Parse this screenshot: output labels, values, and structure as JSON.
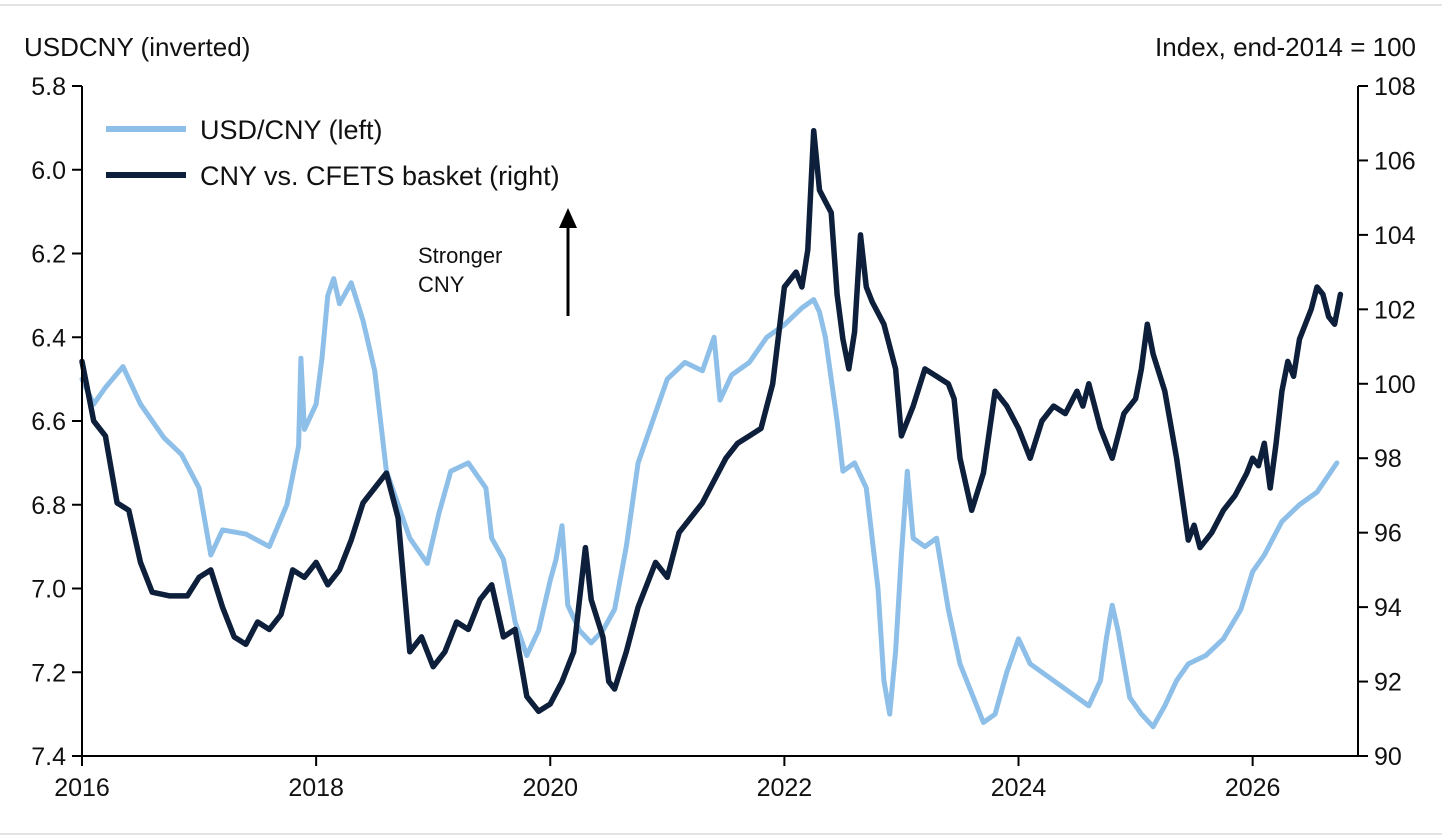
{
  "left_axis_title": "USDCNY (inverted)",
  "right_axis_title": "Index, end-2014 = 100",
  "annotation": {
    "line1": "Stronger",
    "line2": "CNY"
  },
  "chart_data": {
    "type": "line",
    "title": "",
    "x": {
      "min": 2016.0,
      "max": 2026.9,
      "ticks": [
        "2016",
        "2018",
        "2020",
        "2022",
        "2024",
        "2026"
      ]
    },
    "y_left": {
      "label": "USDCNY (inverted)",
      "min": 5.8,
      "max": 7.4,
      "inverted": true,
      "ticks": [
        "5.8",
        "6.0",
        "6.2",
        "6.4",
        "6.6",
        "6.8",
        "7.0",
        "7.2",
        "7.4"
      ]
    },
    "y_right": {
      "label": "Index, end-2014 = 100",
      "min": 90,
      "max": 108,
      "ticks": [
        "108",
        "106",
        "104",
        "102",
        "100",
        "98",
        "96",
        "94",
        "92",
        "90"
      ]
    },
    "legend_position": "top-left",
    "grid": false,
    "series": [
      {
        "name": "USD/CNY (left)",
        "axis": "left",
        "color": "#8dbfe8",
        "points": [
          [
            2016.0,
            6.5
          ],
          [
            2016.1,
            6.56
          ],
          [
            2016.2,
            6.52
          ],
          [
            2016.35,
            6.47
          ],
          [
            2016.5,
            6.56
          ],
          [
            2016.7,
            6.64
          ],
          [
            2016.85,
            6.68
          ],
          [
            2017.0,
            6.76
          ],
          [
            2017.1,
            6.92
          ],
          [
            2017.2,
            6.86
          ],
          [
            2017.4,
            6.87
          ],
          [
            2017.6,
            6.9
          ],
          [
            2017.75,
            6.8
          ],
          [
            2017.85,
            6.66
          ],
          [
            2017.87,
            6.45
          ],
          [
            2017.9,
            6.62
          ],
          [
            2018.0,
            6.56
          ],
          [
            2018.05,
            6.45
          ],
          [
            2018.1,
            6.3
          ],
          [
            2018.15,
            6.26
          ],
          [
            2018.2,
            6.32
          ],
          [
            2018.3,
            6.27
          ],
          [
            2018.4,
            6.36
          ],
          [
            2018.5,
            6.48
          ],
          [
            2018.6,
            6.72
          ],
          [
            2018.7,
            6.8
          ],
          [
            2018.8,
            6.88
          ],
          [
            2018.95,
            6.94
          ],
          [
            2019.05,
            6.82
          ],
          [
            2019.15,
            6.72
          ],
          [
            2019.3,
            6.7
          ],
          [
            2019.45,
            6.76
          ],
          [
            2019.5,
            6.88
          ],
          [
            2019.6,
            6.93
          ],
          [
            2019.7,
            7.08
          ],
          [
            2019.8,
            7.16
          ],
          [
            2019.9,
            7.1
          ],
          [
            2020.0,
            6.98
          ],
          [
            2020.05,
            6.93
          ],
          [
            2020.1,
            6.85
          ],
          [
            2020.15,
            7.04
          ],
          [
            2020.25,
            7.1
          ],
          [
            2020.35,
            7.13
          ],
          [
            2020.45,
            7.1
          ],
          [
            2020.55,
            7.05
          ],
          [
            2020.65,
            6.9
          ],
          [
            2020.75,
            6.7
          ],
          [
            2020.9,
            6.58
          ],
          [
            2021.0,
            6.5
          ],
          [
            2021.15,
            6.46
          ],
          [
            2021.3,
            6.48
          ],
          [
            2021.4,
            6.4
          ],
          [
            2021.45,
            6.55
          ],
          [
            2021.55,
            6.49
          ],
          [
            2021.7,
            6.46
          ],
          [
            2021.85,
            6.4
          ],
          [
            2022.0,
            6.37
          ],
          [
            2022.15,
            6.33
          ],
          [
            2022.25,
            6.31
          ],
          [
            2022.3,
            6.34
          ],
          [
            2022.35,
            6.4
          ],
          [
            2022.45,
            6.6
          ],
          [
            2022.5,
            6.72
          ],
          [
            2022.6,
            6.7
          ],
          [
            2022.7,
            6.76
          ],
          [
            2022.8,
            7.0
          ],
          [
            2022.85,
            7.22
          ],
          [
            2022.9,
            7.3
          ],
          [
            2022.95,
            7.15
          ],
          [
            2023.0,
            6.92
          ],
          [
            2023.05,
            6.72
          ],
          [
            2023.1,
            6.88
          ],
          [
            2023.2,
            6.9
          ],
          [
            2023.3,
            6.88
          ],
          [
            2023.4,
            7.05
          ],
          [
            2023.5,
            7.18
          ],
          [
            2023.6,
            7.25
          ],
          [
            2023.7,
            7.32
          ],
          [
            2023.8,
            7.3
          ],
          [
            2023.9,
            7.2
          ],
          [
            2024.0,
            7.12
          ],
          [
            2024.1,
            7.18
          ],
          [
            2024.3,
            7.22
          ],
          [
            2024.5,
            7.26
          ],
          [
            2024.6,
            7.28
          ],
          [
            2024.7,
            7.22
          ],
          [
            2024.75,
            7.12
          ],
          [
            2024.8,
            7.04
          ],
          [
            2024.85,
            7.1
          ],
          [
            2024.95,
            7.26
          ],
          [
            2025.05,
            7.3
          ],
          [
            2025.15,
            7.33
          ],
          [
            2025.25,
            7.28
          ],
          [
            2025.35,
            7.22
          ],
          [
            2025.45,
            7.18
          ],
          [
            2025.6,
            7.16
          ],
          [
            2025.75,
            7.12
          ],
          [
            2025.9,
            7.05
          ],
          [
            2026.0,
            6.96
          ],
          [
            2026.1,
            6.92
          ],
          [
            2026.25,
            6.84
          ],
          [
            2026.4,
            6.8
          ],
          [
            2026.55,
            6.77
          ],
          [
            2026.72,
            6.7
          ]
        ]
      },
      {
        "name": "CNY vs. CFETS basket (right)",
        "axis": "right",
        "color": "#0d1f3a",
        "points": [
          [
            2016.0,
            100.6
          ],
          [
            2016.1,
            99.0
          ],
          [
            2016.2,
            98.6
          ],
          [
            2016.3,
            96.8
          ],
          [
            2016.4,
            96.6
          ],
          [
            2016.5,
            95.2
          ],
          [
            2016.6,
            94.4
          ],
          [
            2016.75,
            94.3
          ],
          [
            2016.9,
            94.3
          ],
          [
            2017.0,
            94.8
          ],
          [
            2017.1,
            95.0
          ],
          [
            2017.2,
            94.0
          ],
          [
            2017.3,
            93.2
          ],
          [
            2017.4,
            93.0
          ],
          [
            2017.5,
            93.6
          ],
          [
            2017.6,
            93.4
          ],
          [
            2017.7,
            93.8
          ],
          [
            2017.8,
            95.0
          ],
          [
            2017.9,
            94.8
          ],
          [
            2018.0,
            95.2
          ],
          [
            2018.1,
            94.6
          ],
          [
            2018.2,
            95.0
          ],
          [
            2018.3,
            95.8
          ],
          [
            2018.4,
            96.8
          ],
          [
            2018.5,
            97.2
          ],
          [
            2018.6,
            97.6
          ],
          [
            2018.7,
            96.4
          ],
          [
            2018.8,
            92.8
          ],
          [
            2018.9,
            93.2
          ],
          [
            2019.0,
            92.4
          ],
          [
            2019.1,
            92.8
          ],
          [
            2019.2,
            93.6
          ],
          [
            2019.3,
            93.4
          ],
          [
            2019.4,
            94.2
          ],
          [
            2019.5,
            94.6
          ],
          [
            2019.6,
            93.2
          ],
          [
            2019.7,
            93.4
          ],
          [
            2019.8,
            91.6
          ],
          [
            2019.9,
            91.2
          ],
          [
            2020.0,
            91.4
          ],
          [
            2020.1,
            92.0
          ],
          [
            2020.2,
            92.8
          ],
          [
            2020.25,
            94.2
          ],
          [
            2020.3,
            95.6
          ],
          [
            2020.35,
            94.2
          ],
          [
            2020.45,
            93.2
          ],
          [
            2020.5,
            92.0
          ],
          [
            2020.55,
            91.8
          ],
          [
            2020.65,
            92.8
          ],
          [
            2020.75,
            94.0
          ],
          [
            2020.9,
            95.2
          ],
          [
            2021.0,
            94.8
          ],
          [
            2021.1,
            96.0
          ],
          [
            2021.2,
            96.4
          ],
          [
            2021.3,
            96.8
          ],
          [
            2021.4,
            97.4
          ],
          [
            2021.5,
            98.0
          ],
          [
            2021.6,
            98.4
          ],
          [
            2021.7,
            98.6
          ],
          [
            2021.8,
            98.8
          ],
          [
            2021.9,
            100.0
          ],
          [
            2022.0,
            102.6
          ],
          [
            2022.05,
            102.8
          ],
          [
            2022.1,
            103.0
          ],
          [
            2022.15,
            102.6
          ],
          [
            2022.2,
            103.6
          ],
          [
            2022.25,
            106.8
          ],
          [
            2022.3,
            105.2
          ],
          [
            2022.4,
            104.6
          ],
          [
            2022.45,
            102.4
          ],
          [
            2022.5,
            101.2
          ],
          [
            2022.55,
            100.4
          ],
          [
            2022.6,
            101.4
          ],
          [
            2022.65,
            104.0
          ],
          [
            2022.7,
            102.6
          ],
          [
            2022.75,
            102.2
          ],
          [
            2022.85,
            101.6
          ],
          [
            2022.95,
            100.4
          ],
          [
            2023.0,
            98.6
          ],
          [
            2023.1,
            99.4
          ],
          [
            2023.2,
            100.4
          ],
          [
            2023.3,
            100.2
          ],
          [
            2023.4,
            100.0
          ],
          [
            2023.45,
            99.6
          ],
          [
            2023.5,
            98.0
          ],
          [
            2023.6,
            96.6
          ],
          [
            2023.7,
            97.6
          ],
          [
            2023.8,
            99.8
          ],
          [
            2023.9,
            99.4
          ],
          [
            2024.0,
            98.8
          ],
          [
            2024.1,
            98.0
          ],
          [
            2024.2,
            99.0
          ],
          [
            2024.3,
            99.4
          ],
          [
            2024.4,
            99.2
          ],
          [
            2024.5,
            99.8
          ],
          [
            2024.55,
            99.4
          ],
          [
            2024.6,
            100.0
          ],
          [
            2024.7,
            98.8
          ],
          [
            2024.8,
            98.0
          ],
          [
            2024.9,
            99.2
          ],
          [
            2025.0,
            99.6
          ],
          [
            2025.05,
            100.4
          ],
          [
            2025.1,
            101.6
          ],
          [
            2025.15,
            100.8
          ],
          [
            2025.25,
            99.8
          ],
          [
            2025.35,
            98.0
          ],
          [
            2025.45,
            95.8
          ],
          [
            2025.5,
            96.2
          ],
          [
            2025.55,
            95.6
          ],
          [
            2025.65,
            96.0
          ],
          [
            2025.75,
            96.6
          ],
          [
            2025.85,
            97.0
          ],
          [
            2025.95,
            97.6
          ],
          [
            2026.0,
            98.0
          ],
          [
            2026.05,
            97.8
          ],
          [
            2026.1,
            98.4
          ],
          [
            2026.15,
            97.2
          ],
          [
            2026.2,
            98.4
          ],
          [
            2026.25,
            99.8
          ],
          [
            2026.3,
            100.6
          ],
          [
            2026.35,
            100.2
          ],
          [
            2026.4,
            101.2
          ],
          [
            2026.5,
            102.0
          ],
          [
            2026.55,
            102.6
          ],
          [
            2026.6,
            102.4
          ],
          [
            2026.65,
            101.8
          ],
          [
            2026.7,
            101.6
          ],
          [
            2026.75,
            102.4
          ]
        ]
      }
    ]
  }
}
